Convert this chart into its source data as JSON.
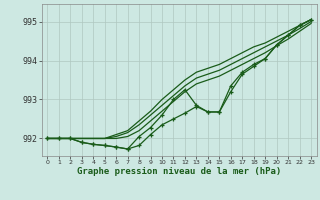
{
  "title": "Graphe pression niveau de la mer (hPa)",
  "background_color": "#cde8e2",
  "grid_color": "#b0c8c0",
  "line_color": "#1a5c1a",
  "x_values": [
    0,
    1,
    2,
    3,
    4,
    5,
    6,
    7,
    8,
    9,
    10,
    11,
    12,
    13,
    14,
    15,
    16,
    17,
    18,
    19,
    20,
    21,
    22,
    23
  ],
  "x_labels": [
    "0",
    "1",
    "2",
    "3",
    "4",
    "5",
    "6",
    "7",
    "8",
    "9",
    "10",
    "11",
    "12",
    "13",
    "14",
    "15",
    "16",
    "17",
    "18",
    "19",
    "20",
    "21",
    "22",
    "23"
  ],
  "ylim": [
    991.55,
    995.45
  ],
  "yticks": [
    992,
    993,
    994,
    995
  ],
  "ytick_labels": [
    "992",
    "993",
    "994",
    "995"
  ],
  "line_smooth1": [
    992.0,
    992.0,
    992.0,
    992.0,
    992.0,
    992.0,
    992.1,
    992.2,
    992.45,
    992.7,
    993.0,
    993.25,
    993.5,
    993.7,
    993.8,
    993.9,
    994.05,
    994.2,
    994.35,
    994.45,
    994.6,
    994.75,
    994.9,
    995.05
  ],
  "line_smooth2": [
    992.0,
    992.0,
    992.0,
    992.0,
    992.0,
    992.0,
    992.05,
    992.15,
    992.35,
    992.6,
    992.85,
    993.1,
    993.35,
    993.55,
    993.65,
    993.75,
    993.9,
    994.05,
    994.2,
    994.35,
    994.5,
    994.65,
    994.82,
    995.0
  ],
  "line_smooth3": [
    992.0,
    992.0,
    992.0,
    992.0,
    992.0,
    992.0,
    992.0,
    992.05,
    992.2,
    992.45,
    992.7,
    992.95,
    993.2,
    993.4,
    993.5,
    993.6,
    993.75,
    993.9,
    994.05,
    994.2,
    994.38,
    994.55,
    994.75,
    994.95
  ],
  "line_markers": [
    992.0,
    992.0,
    992.0,
    991.9,
    991.85,
    991.82,
    991.78,
    991.73,
    992.05,
    992.28,
    992.6,
    993.0,
    993.25,
    992.85,
    992.68,
    992.68,
    993.35,
    993.7,
    993.9,
    994.05,
    994.4,
    994.65,
    994.9,
    995.05
  ],
  "line_markers2": [
    992.0,
    992.0,
    992.0,
    991.9,
    991.85,
    991.82,
    991.78,
    991.73,
    991.82,
    992.1,
    992.35,
    992.5,
    992.65,
    992.82,
    992.68,
    992.68,
    993.2,
    993.65,
    993.85,
    994.05,
    994.4,
    994.65,
    994.9,
    995.05
  ]
}
